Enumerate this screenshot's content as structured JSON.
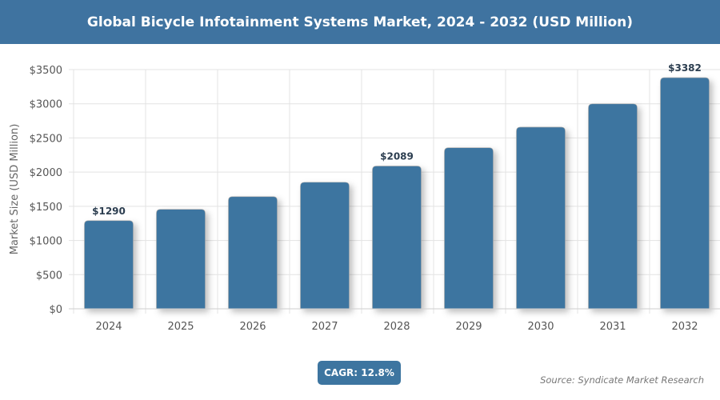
{
  "header": {
    "title": "Global Bicycle Infotainment Systems Market, 2024 - 2032 (USD Million)"
  },
  "chart_data": {
    "type": "bar",
    "title": "Global Bicycle Infotainment Systems Market, 2024 - 2032 (USD Million)",
    "xlabel": "",
    "ylabel": "Market Size (USD Million)",
    "categories": [
      "2024",
      "2025",
      "2026",
      "2027",
      "2028",
      "2029",
      "2030",
      "2031",
      "2032"
    ],
    "values": [
      1290,
      1455,
      1641,
      1851,
      2089,
      2356,
      2658,
      2998,
      3382
    ],
    "data_labels": {
      "2024": "$1290",
      "2028": "$2089",
      "2032": "$3382"
    },
    "ylim": [
      0,
      3500
    ],
    "yticks": [
      "$0",
      "$500",
      "$1000",
      "$1500",
      "$2000",
      "$2500",
      "$3000",
      "$3500"
    ],
    "grid": true,
    "bar_color": "#3d75a0"
  },
  "footer": {
    "cagr": "CAGR: 12.8%",
    "source": "Source: Syndicate Market Research"
  }
}
